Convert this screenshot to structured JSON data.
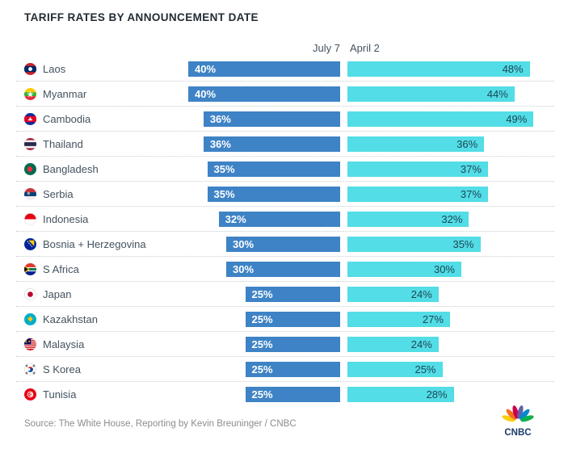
{
  "title": "TARIFF RATES BY ANNOUNCEMENT DATE",
  "source": "Source: The White House, Reporting by Kevin Breuninger / CNBC",
  "brand": "CNBC",
  "colors": {
    "july7_bar": "#3e83c5",
    "april2_bar": "#53dde6",
    "july7_value_text": "#ffffff",
    "april2_value_text": "#1d4656",
    "title_text": "#232b33",
    "label_text": "#44525f",
    "source_text": "#8c8c8c",
    "cnbc_wordmark": "#1a3a6b"
  },
  "chart_data": {
    "type": "bar",
    "orientation": "horizontal",
    "layout": "paired comparison: 'July 7' bars right-aligned to a center axis, 'April 2' bars grow right from the axis; value labels inside bar ends; dotted separators between rows; no visible axis scale",
    "value_suffix": "%",
    "xlim": [
      0,
      49
    ],
    "categories": [
      "Laos",
      "Myanmar",
      "Cambodia",
      "Thailand",
      "Bangladesh",
      "Serbia",
      "Indonesia",
      "Bosnia + Herzegovina",
      "S Africa",
      "Japan",
      "Kazakhstan",
      "Malaysia",
      "S Korea",
      "Tunisia"
    ],
    "flag_icons": [
      "laos-flag-icon",
      "myanmar-flag-icon",
      "cambodia-flag-icon",
      "thailand-flag-icon",
      "bangladesh-flag-icon",
      "serbia-flag-icon",
      "indonesia-flag-icon",
      "bosnia-herzegovina-flag-icon",
      "s-africa-flag-icon",
      "japan-flag-icon",
      "kazakhstan-flag-icon",
      "malaysia-flag-icon",
      "s-korea-flag-icon",
      "tunisia-flag-icon"
    ],
    "series": [
      {
        "name": "July 7",
        "values": [
          40,
          40,
          36,
          36,
          35,
          35,
          32,
          30,
          30,
          25,
          25,
          25,
          25,
          25
        ]
      },
      {
        "name": "April 2",
        "values": [
          48,
          44,
          49,
          36,
          37,
          37,
          32,
          35,
          30,
          24,
          27,
          24,
          25,
          28
        ]
      }
    ]
  }
}
